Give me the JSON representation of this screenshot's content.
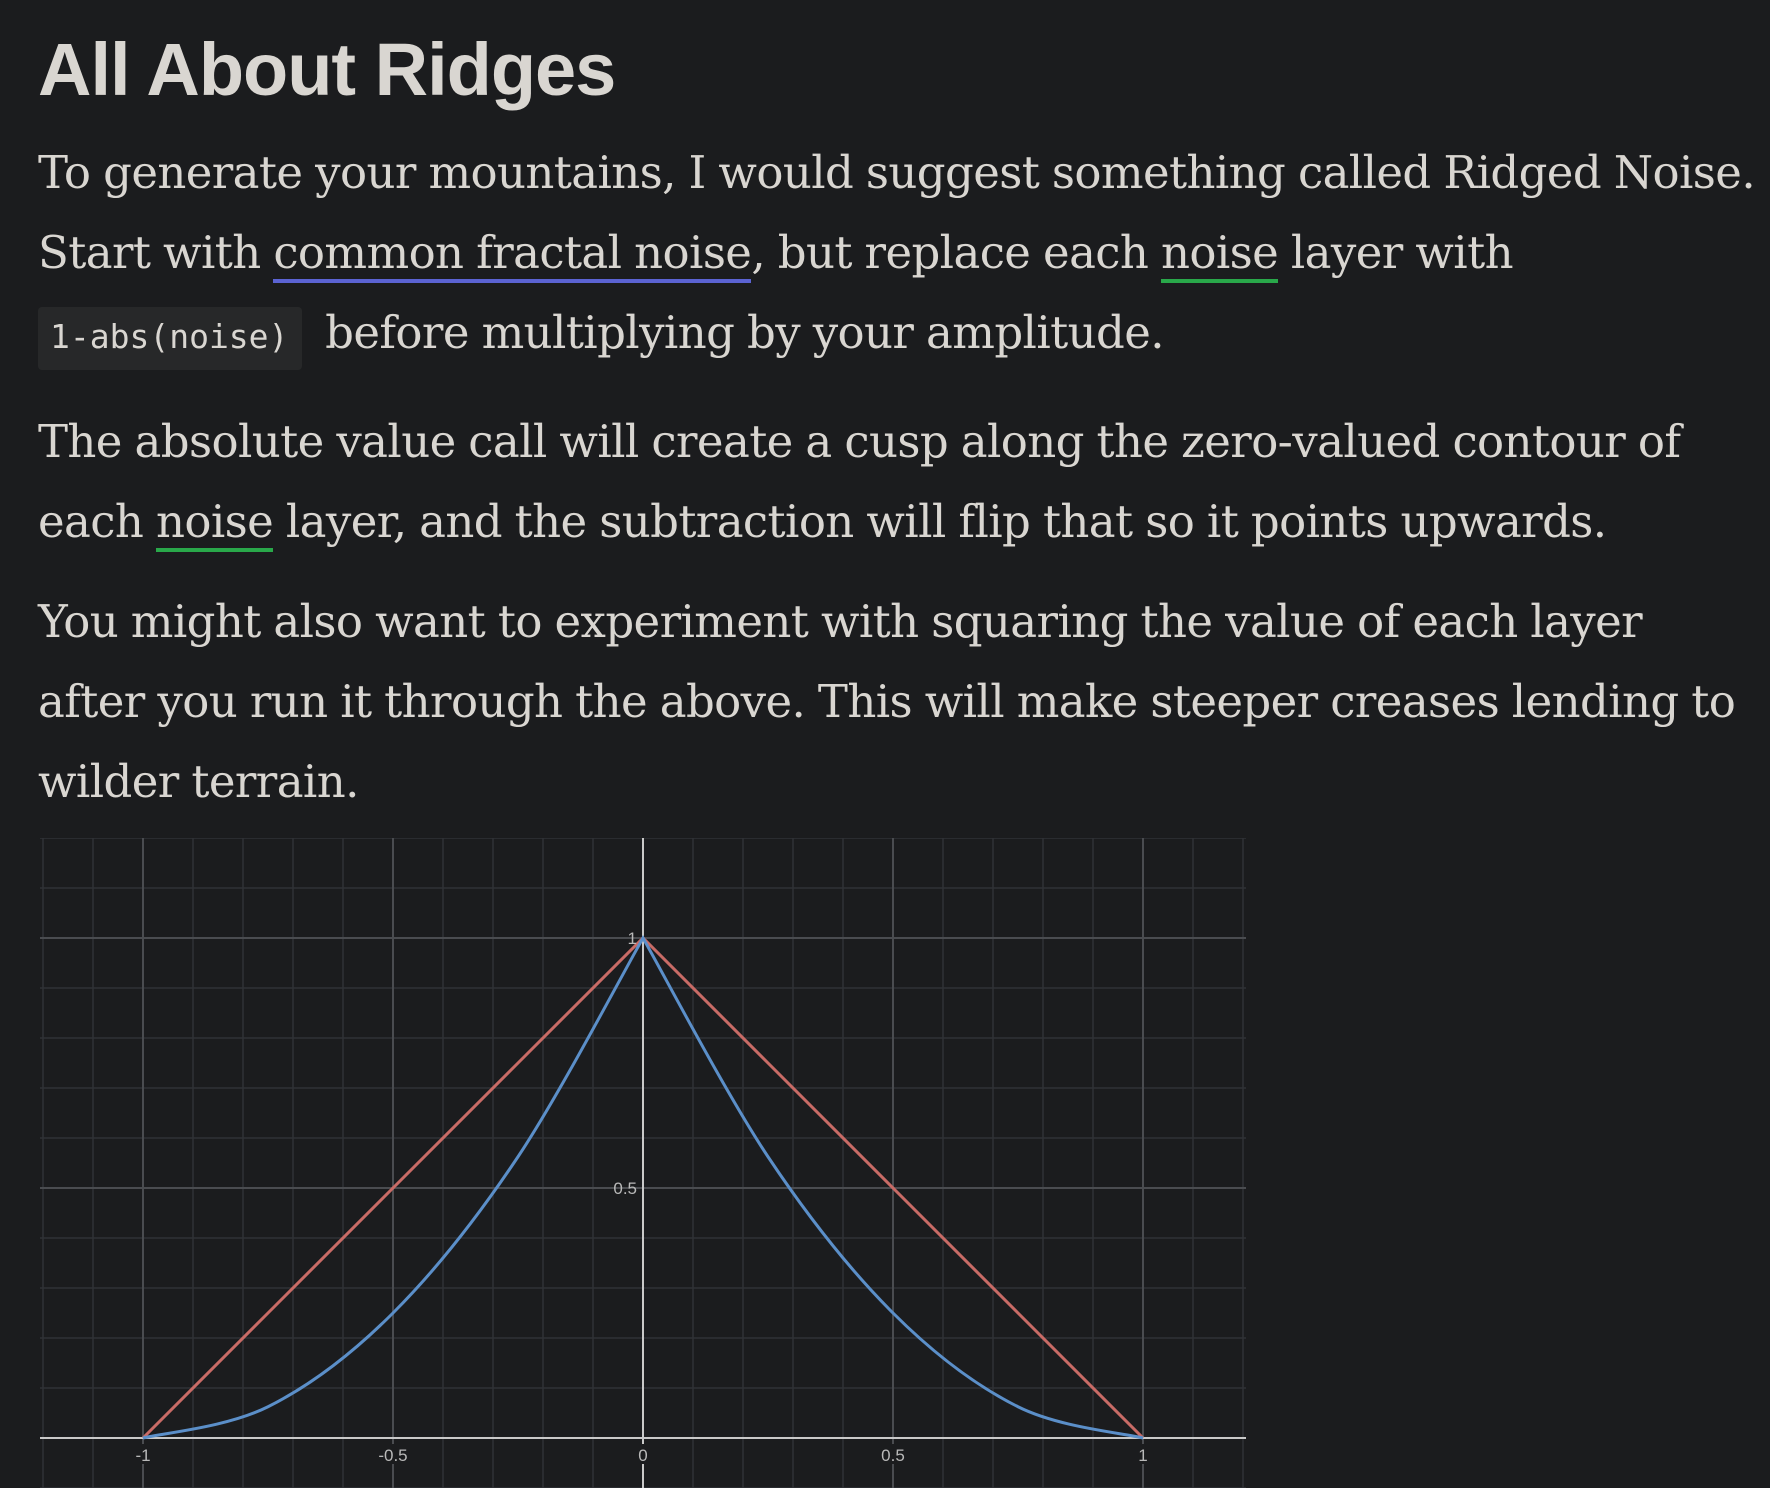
{
  "article": {
    "title": "All About Ridges",
    "p1": {
      "before_link1": "To generate your mountains, I would suggest something called Ridged Noise. Start with ",
      "link1": "common fractal noise",
      "between": ", but replace each ",
      "link2": "noise",
      "after_link2": " layer with ",
      "code": "1-abs(noise)",
      "end": "before multiplying by your amplitude."
    },
    "p2": {
      "before_link": "The absolute value call will create a cusp along the zero-valued contour of each ",
      "link": "noise",
      "after_link": " layer, and the subtraction will flip that so it points upwards."
    },
    "p3": {
      "text": "You might also want to experiment with squaring the value of each layer after you run it through the above. This will make steeper creases lending to wilder terrain."
    }
  },
  "colors": {
    "background": "#1b1c1e",
    "text": "#d9d6d1",
    "link_blue_underline": "#5b63d3",
    "link_green_underline": "#29a84a",
    "series_red": "#c86b66",
    "series_blue": "#5b8fc9"
  },
  "chart_data": {
    "type": "line",
    "title": "",
    "xlabel": "",
    "ylabel": "",
    "xlim": [
      -1.2,
      1.2
    ],
    "ylim": [
      -0.1,
      1.2
    ],
    "grid": true,
    "x_ticks": [
      -1,
      -0.5,
      0,
      0.5,
      1
    ],
    "x_tick_labels": [
      "-1",
      "-0.5",
      "0",
      "0.5",
      "1"
    ],
    "y_ticks": [
      0.5,
      1
    ],
    "y_tick_labels": [
      "0.5",
      "1"
    ],
    "series": [
      {
        "color": "#c86b66",
        "x": [
          -1,
          -0.75,
          -0.5,
          -0.25,
          0,
          0.25,
          0.5,
          0.75,
          1
        ],
        "y": [
          0,
          0.25,
          0.5,
          0.75,
          1,
          0.75,
          0.5,
          0.25,
          0
        ]
      },
      {
        "color": "#5b8fc9",
        "x": [
          -1,
          -0.75,
          -0.5,
          -0.25,
          0,
          0.25,
          0.5,
          0.75,
          1
        ],
        "y": [
          0,
          0.0625,
          0.25,
          0.5625,
          1,
          0.5625,
          0.25,
          0.0625,
          0
        ]
      }
    ]
  }
}
